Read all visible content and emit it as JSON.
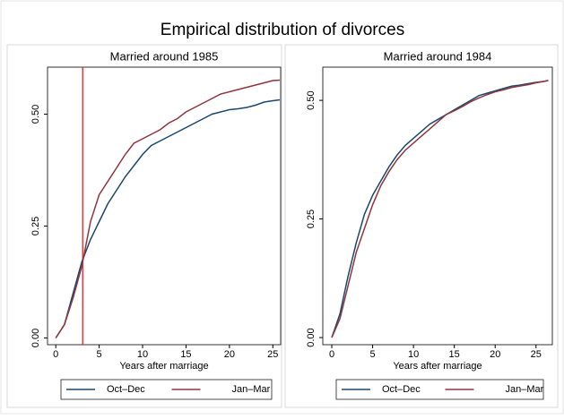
{
  "title": "Empirical distribution of divorces",
  "chart_data": [
    {
      "type": "line",
      "title": "Married around 1985",
      "x_label": "Years after marriage",
      "x": [
        0,
        1,
        2,
        3,
        4,
        5,
        6,
        7,
        8,
        9,
        10,
        11,
        12,
        13,
        14,
        15,
        16,
        17,
        18,
        19,
        20,
        21,
        22,
        23,
        24,
        25,
        25.8
      ],
      "series": [
        {
          "name": "Oct–Dec",
          "color": "#1a476f",
          "values": [
            0,
            0.03,
            0.1,
            0.17,
            0.22,
            0.26,
            0.3,
            0.33,
            0.36,
            0.385,
            0.41,
            0.43,
            0.44,
            0.45,
            0.46,
            0.47,
            0.48,
            0.49,
            0.5,
            0.505,
            0.51,
            0.512,
            0.515,
            0.52,
            0.527,
            0.53,
            0.532
          ]
        },
        {
          "name": "Jan–Mar",
          "color": "#90353b",
          "values": [
            0,
            0.03,
            0.09,
            0.16,
            0.26,
            0.32,
            0.35,
            0.38,
            0.41,
            0.435,
            0.445,
            0.455,
            0.465,
            0.48,
            0.49,
            0.505,
            0.515,
            0.525,
            0.535,
            0.545,
            0.55,
            0.555,
            0.56,
            0.565,
            0.57,
            0.575,
            0.576
          ]
        }
      ],
      "reference_line": {
        "x": 3.1,
        "color": "#d62728"
      },
      "xlim": [
        -0.95,
        25.9
      ],
      "ylim": [
        -0.015,
        0.605
      ],
      "xticks": [
        0,
        5,
        10,
        15,
        20,
        25
      ],
      "yticks": [
        {
          "value": 0,
          "label": "0.00"
        },
        {
          "value": 0.25,
          "label": "0.25"
        },
        {
          "value": 0.5,
          "label": "0.50"
        }
      ],
      "legend": "bottom"
    },
    {
      "type": "line",
      "title": "Married around 1984",
      "x_label": "Years after marriage",
      "x": [
        0,
        1,
        2,
        3,
        4,
        5,
        6,
        7,
        8,
        9,
        10,
        11,
        12,
        13,
        14,
        15,
        16,
        17,
        18,
        19,
        20,
        21,
        22,
        23,
        24,
        25,
        26,
        26.5
      ],
      "series": [
        {
          "name": "Oct–Dec",
          "color": "#1a476f",
          "values": [
            0,
            0.05,
            0.13,
            0.2,
            0.26,
            0.3,
            0.33,
            0.36,
            0.385,
            0.405,
            0.42,
            0.435,
            0.45,
            0.46,
            0.47,
            0.48,
            0.49,
            0.5,
            0.51,
            0.515,
            0.52,
            0.525,
            0.53,
            0.532,
            0.535,
            0.538,
            0.54,
            0.542
          ]
        },
        {
          "name": "Jan–Mar",
          "color": "#90353b",
          "values": [
            0,
            0.04,
            0.11,
            0.18,
            0.23,
            0.28,
            0.32,
            0.35,
            0.375,
            0.395,
            0.41,
            0.425,
            0.44,
            0.455,
            0.47,
            0.478,
            0.487,
            0.497,
            0.505,
            0.512,
            0.518,
            0.522,
            0.527,
            0.53,
            0.533,
            0.537,
            0.54,
            0.542
          ]
        }
      ],
      "xlim": [
        -1.1,
        27
      ],
      "ylim": [
        -0.015,
        0.57
      ],
      "xticks": [
        0,
        5,
        10,
        15,
        20,
        25
      ],
      "yticks": [
        {
          "value": 0,
          "label": "0.00"
        },
        {
          "value": 0.25,
          "label": "0.25"
        },
        {
          "value": 0.5,
          "label": "0.50"
        }
      ],
      "legend": "bottom"
    }
  ]
}
